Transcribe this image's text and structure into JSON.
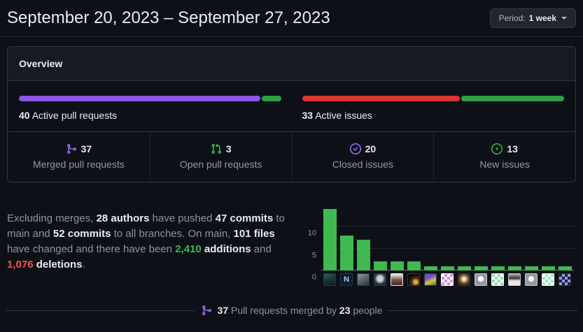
{
  "header": {
    "title": "September 20, 2023 – September 27, 2023",
    "period_label": "Period:",
    "period_value": "1 week"
  },
  "colors": {
    "page_bg": "#0d1117",
    "card_border": "#30363d",
    "text_primary": "#e6edf3",
    "text_muted": "#8b949e",
    "purple": "#a371f7",
    "green": "#3fb950",
    "red": "#f85149"
  },
  "overview": {
    "title": "Overview",
    "pr_bar": {
      "count": "40",
      "label": "Active pull requests",
      "segments": [
        {
          "name": "merged-pull-requests",
          "count": 37,
          "color": "#8957e5"
        },
        {
          "name": "open-pull-requests",
          "count": 3,
          "color": "#2ea043"
        }
      ]
    },
    "issues_bar": {
      "count": "33",
      "label": "Active issues",
      "segments": [
        {
          "name": "closed-issues",
          "count": 20,
          "color": "#da3633"
        },
        {
          "name": "new-issues",
          "count": 13,
          "color": "#2ea043"
        }
      ]
    },
    "stats": [
      {
        "value": "37",
        "label": "Merged pull requests",
        "icon": "git-merge-icon",
        "icon_color": "#a371f7"
      },
      {
        "value": "3",
        "label": "Open pull requests",
        "icon": "git-pull-request-icon",
        "icon_color": "#3fb950"
      },
      {
        "value": "20",
        "label": "Closed issues",
        "icon": "issue-closed-icon",
        "icon_color": "#a371f7"
      },
      {
        "value": "13",
        "label": "New issues",
        "icon": "issue-opened-icon",
        "icon_color": "#3fb950"
      }
    ]
  },
  "summary": {
    "segments": [
      {
        "text": "Excluding merges, ",
        "style": "muted"
      },
      {
        "text": "28 authors",
        "style": "bold"
      },
      {
        "text": " have pushed ",
        "style": "muted"
      },
      {
        "text": "47 commits",
        "style": "bold"
      },
      {
        "text": " to main and ",
        "style": "muted"
      },
      {
        "text": "52 commits",
        "style": "bold"
      },
      {
        "text": " to all branches. On main, ",
        "style": "muted"
      },
      {
        "text": "101 files",
        "style": "bold"
      },
      {
        "text": " have changed and there have been ",
        "style": "muted"
      },
      {
        "text": "2,410",
        "style": "additions"
      },
      {
        "text": " ",
        "style": "muted"
      },
      {
        "text": "additions",
        "style": "bold"
      },
      {
        "text": " and ",
        "style": "muted"
      },
      {
        "text": "1,076",
        "style": "deletions"
      },
      {
        "text": " ",
        "style": "muted"
      },
      {
        "text": "deletions",
        "style": "bold"
      },
      {
        "text": ".",
        "style": "muted"
      }
    ]
  },
  "chart_data": {
    "type": "bar",
    "categories": [
      "author 1",
      "author 2",
      "author 3",
      "author 4",
      "author 5",
      "author 6",
      "author 7",
      "author 8",
      "author 9",
      "author 10",
      "author 11",
      "author 12",
      "author 13",
      "author 14",
      "author 15"
    ],
    "values": [
      14,
      8,
      7,
      2,
      2,
      2,
      1,
      1,
      1,
      1,
      1,
      1,
      1,
      1,
      1
    ],
    "title": "",
    "xlabel": "",
    "ylabel": "",
    "ylim": [
      0,
      15.5
    ],
    "yticks": [
      0,
      5,
      10
    ],
    "grid": true,
    "legend": false,
    "bar_color": "#3fb950",
    "avatars": [
      {
        "name": "avatar-author-1",
        "border": "#30363d",
        "background": "linear-gradient(160deg,#2b5f5f 0%,#1d3a3a 45%,#10151c 100%)"
      },
      {
        "name": "avatar-author-2",
        "border": "#30363d",
        "background": "#0d1b2e",
        "glyph": "N",
        "glyph_color": "#a9c9e8"
      },
      {
        "name": "avatar-author-3",
        "border": "#30363d",
        "background": "linear-gradient(150deg,#8a97a3 0%,#55606b 55%,#2c343c 100%)"
      },
      {
        "name": "avatar-author-4",
        "border": "#30363d",
        "background": "radial-gradient(circle at 50% 42%,#c7d3de 0 30%,#2c3a46 62%,#131b23 100%)"
      },
      {
        "name": "avatar-author-5",
        "border": "#e8e8e8",
        "background": "linear-gradient(180deg,#f2efec 0%,#6d5248 55%,#55222e 100%)"
      },
      {
        "name": "avatar-author-6",
        "border": "#30363d",
        "background": "radial-gradient(circle at 68% 72%,#e8a33d 0 16%,#4a3413 34%,#06080c 68%)"
      },
      {
        "name": "avatar-author-7",
        "border": "#30363d",
        "background": "linear-gradient(155deg,#4a5fd0 0%,#7a4fc0 35%,#d8c34a 62%,#3a7a4a 100%)"
      },
      {
        "name": "avatar-author-8",
        "border": "#ffffff",
        "background": "conic-gradient(#d98fd6 25%,#ffffff 0 50%,#d98fd6 0 75%,#ffffff 0) 0 0/50% 50%"
      },
      {
        "name": "avatar-author-9",
        "border": "#30363d",
        "background": "radial-gradient(circle at 50% 45%,#f3e6c4 0 18%,#96763f 42%,#2a1d12 78%)"
      },
      {
        "name": "avatar-author-10",
        "border": "#c8c8c8",
        "background": "radial-gradient(circle at 50% 44%,#f6f8fa 0 33%,#949aa2 34%)"
      },
      {
        "name": "avatar-author-11",
        "border": "#ffffff",
        "background": "conic-gradient(#ffffff 25%,#90dcb4 0 50%,#ffffff 0 75%,#90dcb4 0) 0 0/50% 50%"
      },
      {
        "name": "avatar-author-12",
        "border": "#c8c8c8",
        "background": "linear-gradient(180deg,#a8aeb4 0%,#3f362e 38%,#e9e7e3 62%)"
      },
      {
        "name": "avatar-author-13",
        "border": "#c8c8c8",
        "background": "radial-gradient(circle at 50% 44%,#f6f8fa 0 33%,#949aa2 34%)"
      },
      {
        "name": "avatar-author-14",
        "border": "#ffffff",
        "background": "conic-gradient(#9fe8c0 25%,#ffffff 0 50%,#9fe8c0 0 75%,#ffffff 0) 0 0/50% 50%"
      },
      {
        "name": "avatar-author-15",
        "border": "#2a3040",
        "background": "conic-gradient(#8f9aec 25%,#1c2233 0 50%,#8f9aec 0 75%,#1c2233 0) 0 0/50% 50%"
      }
    ]
  },
  "footer": {
    "icon": "git-merge-icon",
    "icon_color": "#a371f7",
    "segments": [
      {
        "text": "37",
        "style": "bold"
      },
      {
        "text": " Pull requests merged by ",
        "style": "muted"
      },
      {
        "text": "23",
        "style": "bold"
      },
      {
        "text": " people",
        "style": "muted"
      }
    ]
  }
}
